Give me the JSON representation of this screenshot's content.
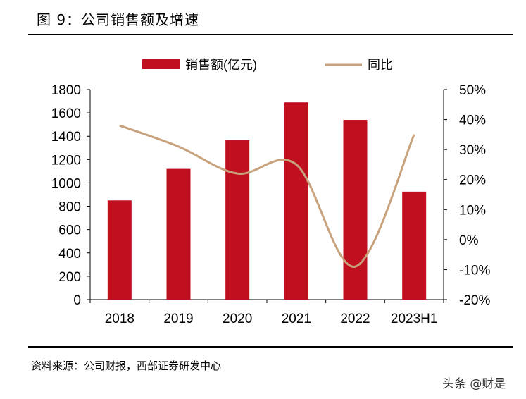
{
  "figure": {
    "title": "图 9：公司销售额及增速",
    "source": "资料来源：公司财报，西部证券研发中心",
    "watermark": "头条 @财是"
  },
  "colors": {
    "bar": "#c0101f",
    "line": "#c8a27c",
    "axis": "#000000"
  },
  "chart_data": {
    "type": "bar",
    "title": "",
    "categories": [
      "2018",
      "2019",
      "2020",
      "2021",
      "2022",
      "2023H1"
    ],
    "series": [
      {
        "name": "销售额(亿元)",
        "type": "bar",
        "axis": "left",
        "values": [
          850,
          1120,
          1365,
          1690,
          1540,
          925
        ]
      },
      {
        "name": "同比",
        "type": "line",
        "axis": "right",
        "values": [
          38,
          31,
          22,
          25,
          -9,
          35
        ]
      }
    ],
    "y_left": {
      "min": 0,
      "max": 1800,
      "ticks": [
        "0",
        "200",
        "400",
        "600",
        "800",
        "1000",
        "1200",
        "1400",
        "1600",
        "1800"
      ]
    },
    "y_right": {
      "min": -20,
      "max": 50,
      "ticks": [
        "-20%",
        "-10%",
        "0%",
        "10%",
        "20%",
        "30%",
        "40%",
        "50%"
      ]
    },
    "legend": {
      "position": "top",
      "bar_label": "销售额(亿元)",
      "line_label": "同比"
    },
    "grid": false
  }
}
